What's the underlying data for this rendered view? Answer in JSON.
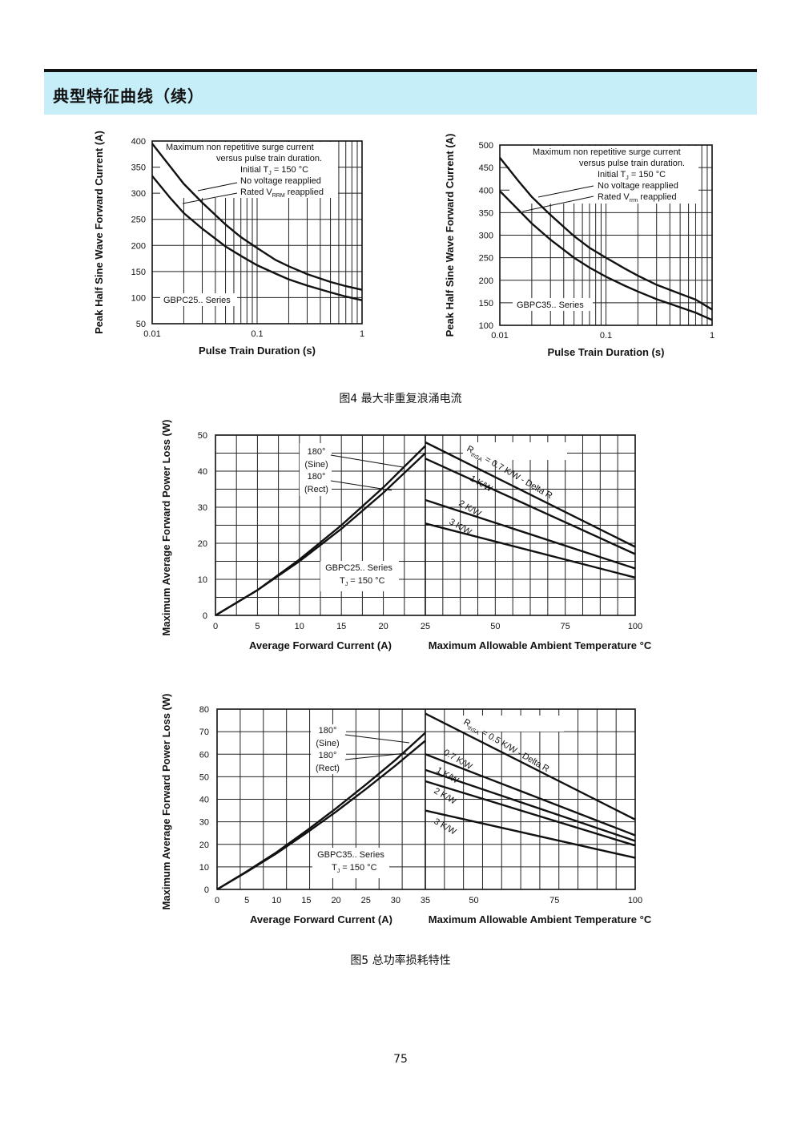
{
  "header": {
    "title": "典型特征曲线（续）"
  },
  "captions": {
    "fig4": "图4  最大非重复浪涌电流",
    "fig5": "图5  总功率损耗特性"
  },
  "page_number": "75",
  "chart_data": [
    {
      "id": "surge-25",
      "type": "line",
      "xscale": "log",
      "xlabel": "Pulse Train Duration (s)",
      "ylabel": "Peak Half Sine Wave Forward Current (A)",
      "xlim": [
        0.01,
        1
      ],
      "ylim": [
        50,
        400
      ],
      "xticks": [
        "0.01",
        "0.1",
        "1"
      ],
      "yticks": [
        "50",
        "100",
        "150",
        "200",
        "250",
        "300",
        "350",
        "400"
      ],
      "grid": true,
      "annotations": {
        "l1": "Maximum non repetitive surge current",
        "l2": "versus pulse train duration.",
        "l3": "Initial T",
        "l3sub": "J",
        "l3rest": " = 150 °C",
        "l4": "No voltage reapplied",
        "l5": "Rated V",
        "l5sub": "RRM",
        "l5rest": "  reapplied",
        "series_label": "GBPC25.. Series"
      },
      "series": [
        {
          "x": [
            0.01,
            0.015,
            0.02,
            0.03,
            0.05,
            0.07,
            0.1,
            0.15,
            0.2,
            0.3,
            0.5,
            0.7,
            1
          ],
          "y": [
            395,
            350,
            318,
            282,
            240,
            216,
            195,
            172,
            160,
            145,
            130,
            122,
            115
          ]
        },
        {
          "x": [
            0.01,
            0.015,
            0.02,
            0.03,
            0.05,
            0.07,
            0.1,
            0.15,
            0.2,
            0.3,
            0.5,
            0.7,
            1
          ],
          "y": [
            333,
            290,
            262,
            232,
            198,
            180,
            162,
            146,
            135,
            123,
            110,
            102,
            95
          ]
        }
      ]
    },
    {
      "id": "surge-35",
      "type": "line",
      "xscale": "log",
      "xlabel": "Pulse Train Duration (s)",
      "ylabel": "Peak Half Sine Wave Forward Current (A)",
      "xlim": [
        0.01,
        1
      ],
      "ylim": [
        100,
        500
      ],
      "xticks": [
        "0.01",
        "0.1",
        "1"
      ],
      "yticks": [
        "100",
        "150",
        "200",
        "250",
        "300",
        "350",
        "400",
        "450",
        "500"
      ],
      "grid": true,
      "annotations": {
        "l1": "Maximum non repetitive surge current",
        "l2": "versus pulse train duration.",
        "l3": "Initial T",
        "l3sub": "J",
        "l3rest": " = 150 °C",
        "l4": "No voltage reapplied",
        "l5": "Rated V",
        "l5sub": "rrm",
        "l5rest": " reapplied",
        "series_label": "GBPC35.. Series"
      },
      "series": [
        {
          "x": [
            0.01,
            0.015,
            0.02,
            0.03,
            0.05,
            0.07,
            0.1,
            0.15,
            0.2,
            0.3,
            0.5,
            0.7,
            1
          ],
          "y": [
            472,
            420,
            385,
            345,
            298,
            272,
            250,
            226,
            210,
            190,
            170,
            157,
            135
          ]
        },
        {
          "x": [
            0.01,
            0.015,
            0.02,
            0.03,
            0.05,
            0.07,
            0.1,
            0.15,
            0.2,
            0.3,
            0.5,
            0.7,
            1
          ],
          "y": [
            398,
            356,
            326,
            290,
            250,
            228,
            208,
            188,
            175,
            158,
            140,
            128,
            112
          ]
        }
      ]
    },
    {
      "id": "power-25",
      "type": "line",
      "ylabel": "Maximum Average Forward Power Loss (W)",
      "ylim": [
        0,
        50
      ],
      "yticks": [
        "0",
        "10",
        "20",
        "30",
        "40",
        "50"
      ],
      "grid": true,
      "left": {
        "xlabel": "Average Forward Current (A)",
        "xlim": [
          0,
          25
        ],
        "xticks": [
          "0",
          "5",
          "10",
          "15",
          "20",
          "25"
        ],
        "series": [
          {
            "name": "180° (Sine)",
            "x": [
              0,
              5,
              10,
              15,
              20,
              25
            ],
            "y": [
              0,
              7,
              15.5,
              25,
              35.5,
              47
            ]
          },
          {
            "name": "180° (Rect)",
            "x": [
              0,
              5,
              10,
              15,
              20,
              25
            ],
            "y": [
              0,
              7,
              15,
              24,
              34,
              45
            ]
          }
        ]
      },
      "right": {
        "xlabel": "Maximum Allowable Ambient Temperature °C",
        "xlim": [
          25,
          100
        ],
        "xticks": [
          "25",
          "50",
          "75",
          "100"
        ],
        "series": [
          {
            "name": "R thSA = 0.7 K/W - Delta R",
            "x": [
              25,
              100
            ],
            "y": [
              48,
              19
            ]
          },
          {
            "name": "1 K/W",
            "x": [
              25,
              100
            ],
            "y": [
              43.5,
              17
            ]
          },
          {
            "name": "2 K/W",
            "x": [
              25,
              100
            ],
            "y": [
              32,
              13
            ]
          },
          {
            "name": "3 K/W",
            "x": [
              25,
              100
            ],
            "y": [
              25.5,
              10.5
            ]
          }
        ]
      },
      "annotations": {
        "sine_a": "180°",
        "sine_b": "(Sine)",
        "rect_a": "180°",
        "rect_b": "(Rect)",
        "series_label": "GBPC25.. Series",
        "tj": "T",
        "tj_sub": "J",
        "tj_rest": " = 150 °C",
        "rth": "R",
        "rth_sub": "thSA",
        "rth_rest": " = 0.7 K/W - Delta R",
        "k1": "1 K/W",
        "k2": "2 K/W",
        "k3": "3 K/W"
      }
    },
    {
      "id": "power-35",
      "type": "line",
      "ylabel": "Maximum Average Forward Power Loss (W)",
      "ylim": [
        0,
        80
      ],
      "yticks": [
        "0",
        "10",
        "20",
        "30",
        "40",
        "50",
        "60",
        "70",
        "80"
      ],
      "grid": true,
      "left": {
        "xlabel": "Average Forward Current (A)",
        "xlim": [
          0,
          35
        ],
        "xticks": [
          "0",
          "5",
          "10",
          "15",
          "20",
          "25",
          "30",
          "35"
        ],
        "series": [
          {
            "name": "180° (Sine)",
            "x": [
              0,
              5,
              10,
              15,
              20,
              25,
              30,
              35
            ],
            "y": [
              0,
              8,
              16.5,
              26,
              36,
              46.5,
              57.5,
              69.5
            ]
          },
          {
            "name": "180° (Rect)",
            "x": [
              0,
              5,
              10,
              15,
              20,
              25,
              30,
              35
            ],
            "y": [
              0,
              7.8,
              16,
              25,
              34.5,
              44.5,
              55,
              66
            ]
          }
        ]
      },
      "right": {
        "xlabel": "Maximum Allowable Ambient Temperature °C",
        "xlim": [
          35,
          100
        ],
        "xticks": [
          "35",
          "50",
          "75",
          "100"
        ],
        "series": [
          {
            "name": "R thSA = 0.5 K/W - Delta R",
            "x": [
              35,
              100
            ],
            "y": [
              78,
              31
            ]
          },
          {
            "name": "0.7 K/W",
            "x": [
              35,
              100
            ],
            "y": [
              60,
              24
            ]
          },
          {
            "name": "1 K/W",
            "x": [
              35,
              100
            ],
            "y": [
              53,
              21.5
            ]
          },
          {
            "name": "2 K/W",
            "x": [
              35,
              100
            ],
            "y": [
              48,
              19.5
            ]
          },
          {
            "name": "3 K/W",
            "x": [
              35,
              100
            ],
            "y": [
              35,
              14
            ]
          }
        ]
      },
      "annotations": {
        "sine_a": "180°",
        "sine_b": "(Sine)",
        "rect_a": "180°",
        "rect_b": "(Rect)",
        "series_label": "GBPC35.. Series",
        "tj": "T",
        "tj_sub": "J",
        "tj_rest": " = 150 °C",
        "rth": "R",
        "rth_sub": "thSA",
        "rth_rest": " = 0.5 K/W - Delta R",
        "k07": "0.7 K/W",
        "k1": "1 K/W",
        "k2": "2 K/W",
        "k3": "3 K/W"
      }
    }
  ]
}
